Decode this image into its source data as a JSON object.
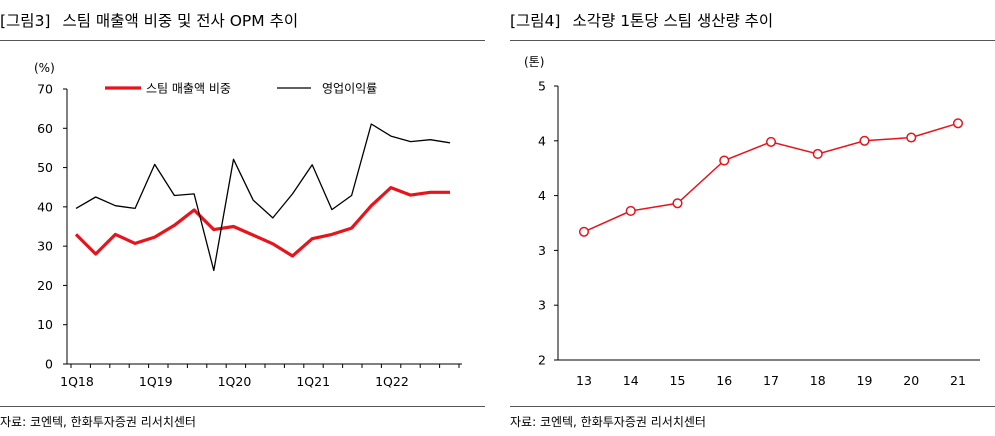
{
  "left": {
    "title_num": "[그림3]",
    "title": "스팀 매출액 비중 및 전사 OPM 추이",
    "source": "자료: 코엔텍, 한화투자증권 리서치센터"
  },
  "right": {
    "title_num": "[그림4]",
    "title": "소각량 1톤당 스팀 생산량 추이",
    "source": "자료: 코엔텍, 한화투자증권 리서치센터"
  },
  "colors": {
    "red": "#e8141b",
    "black": "#000000",
    "axis": "#000000"
  },
  "chart_data": [
    {
      "type": "line",
      "unit_label": "(%)",
      "ylim": [
        0,
        70
      ],
      "yticks": [
        0,
        10,
        20,
        30,
        40,
        50,
        60,
        70
      ],
      "x_tick_labels": [
        {
          "index": 0,
          "label": "1Q18"
        },
        {
          "index": 4,
          "label": "1Q19"
        },
        {
          "index": 8,
          "label": "1Q20"
        },
        {
          "index": 12,
          "label": "1Q21"
        },
        {
          "index": 16,
          "label": "1Q22"
        }
      ],
      "n_points": 20,
      "legend_placement": "top",
      "series": [
        {
          "name": "스팀 매출액 비중",
          "color": "#e8141b",
          "values": [
            33,
            28,
            33,
            30.7,
            32.3,
            35.3,
            39.2,
            34.2,
            35,
            32.8,
            30.6,
            27.5,
            31.9,
            33,
            34.6,
            40.3,
            44.9,
            43,
            43.7,
            43.7
          ]
        },
        {
          "name": "영업이익률",
          "color": "#000000",
          "values": [
            39.6,
            42.5,
            40.3,
            39.6,
            50.8,
            42.9,
            43.3,
            23.8,
            52.1,
            41.7,
            37.2,
            43.3,
            50.7,
            39.3,
            42.9,
            61.1,
            58,
            56.6,
            57.1,
            56.3
          ]
        }
      ]
    },
    {
      "type": "line",
      "unit_label": "(톤)",
      "y_tick_labels": [
        "2",
        "3",
        "3",
        "4",
        "4",
        "5"
      ],
      "ylim": [
        2.0,
        4.5
      ],
      "categories": [
        "13",
        "14",
        "15",
        "16",
        "17",
        "18",
        "19",
        "20",
        "21"
      ],
      "series": [
        {
          "color": "#e8141b",
          "markers": "open-circle",
          "values": [
            3.17,
            3.36,
            3.43,
            3.82,
            3.99,
            3.88,
            4.0,
            4.03,
            4.16
          ]
        }
      ]
    }
  ]
}
